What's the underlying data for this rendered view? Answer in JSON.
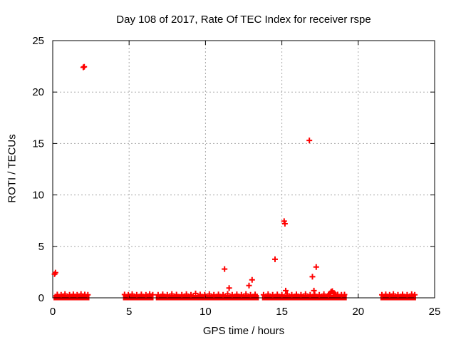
{
  "chart_data": {
    "type": "scatter",
    "title": "Day 108 of 2017, Rate Of TEC Index for receiver rspe",
    "xlabel": "GPS time / hours",
    "ylabel": "ROTI / TECUs",
    "xlim": [
      0,
      25
    ],
    "ylim": [
      0,
      25
    ],
    "xticks": [
      0,
      5,
      10,
      15,
      20,
      25
    ],
    "yticks": [
      0,
      5,
      10,
      15,
      20,
      25
    ],
    "grid": true,
    "legend": "none",
    "marker": "plus",
    "marker_color": "#ff0000",
    "border_color": "#000000",
    "grid_color": "#a8a8a8",
    "background": "#ffffff",
    "series": [
      {
        "name": "ROTI",
        "points": [
          [
            0.12,
            2.3
          ],
          [
            0.18,
            2.45
          ],
          [
            2.0,
            22.4
          ],
          [
            2.06,
            22.45
          ],
          [
            11.25,
            2.8
          ],
          [
            11.55,
            0.95
          ],
          [
            12.85,
            1.2
          ],
          [
            13.05,
            1.75
          ],
          [
            14.55,
            3.75
          ],
          [
            15.15,
            7.45
          ],
          [
            15.2,
            7.2
          ],
          [
            15.25,
            0.7
          ],
          [
            16.8,
            15.3
          ],
          [
            17.0,
            2.05
          ],
          [
            17.1,
            0.7
          ],
          [
            17.25,
            3.0
          ],
          [
            18.15,
            0.4
          ],
          [
            18.22,
            0.58
          ],
          [
            18.3,
            0.65
          ],
          [
            18.4,
            0.48
          ],
          [
            18.5,
            0.35
          ]
        ]
      }
    ],
    "baseline_band": {
      "description": "dense overlapping points near ROTI 0",
      "y_top": 0.28,
      "y_bottom": -0.24,
      "segments": [
        [
          0.05,
          2.4
        ],
        [
          4.6,
          6.6
        ],
        [
          6.75,
          13.5
        ],
        [
          13.7,
          19.25
        ],
        [
          21.45,
          23.78
        ]
      ]
    },
    "band_top_points": [
      [
        0.3,
        0.32
      ],
      [
        0.55,
        0.3
      ],
      [
        0.8,
        0.36
      ],
      [
        1.1,
        0.3
      ],
      [
        1.35,
        0.34
      ],
      [
        1.6,
        0.3
      ],
      [
        1.85,
        0.37
      ],
      [
        2.1,
        0.32
      ],
      [
        2.3,
        0.3
      ],
      [
        4.7,
        0.32
      ],
      [
        4.95,
        0.3
      ],
      [
        5.2,
        0.35
      ],
      [
        5.5,
        0.3
      ],
      [
        5.8,
        0.33
      ],
      [
        6.1,
        0.3
      ],
      [
        6.35,
        0.36
      ],
      [
        6.55,
        0.3
      ],
      [
        6.9,
        0.3
      ],
      [
        7.2,
        0.34
      ],
      [
        7.5,
        0.3
      ],
      [
        7.8,
        0.37
      ],
      [
        8.1,
        0.31
      ],
      [
        8.45,
        0.3
      ],
      [
        8.75,
        0.35
      ],
      [
        9.05,
        0.3
      ],
      [
        9.35,
        0.42
      ],
      [
        9.65,
        0.32
      ],
      [
        9.95,
        0.3
      ],
      [
        10.25,
        0.36
      ],
      [
        10.55,
        0.3
      ],
      [
        10.85,
        0.33
      ],
      [
        11.15,
        0.3
      ],
      [
        11.45,
        0.38
      ],
      [
        11.75,
        0.3
      ],
      [
        12.05,
        0.34
      ],
      [
        12.35,
        0.3
      ],
      [
        12.65,
        0.36
      ],
      [
        12.95,
        0.3
      ],
      [
        13.25,
        0.33
      ],
      [
        13.8,
        0.3
      ],
      [
        14.1,
        0.35
      ],
      [
        14.4,
        0.3
      ],
      [
        14.7,
        0.33
      ],
      [
        15.0,
        0.3
      ],
      [
        15.35,
        0.37
      ],
      [
        15.65,
        0.3
      ],
      [
        15.95,
        0.34
      ],
      [
        16.25,
        0.3
      ],
      [
        16.55,
        0.36
      ],
      [
        16.85,
        0.3
      ],
      [
        17.15,
        0.33
      ],
      [
        17.45,
        0.3
      ],
      [
        17.75,
        0.35
      ],
      [
        18.05,
        0.3
      ],
      [
        18.65,
        0.32
      ],
      [
        18.9,
        0.3
      ],
      [
        19.1,
        0.31
      ],
      [
        21.55,
        0.3
      ],
      [
        21.8,
        0.34
      ],
      [
        22.05,
        0.3
      ],
      [
        22.3,
        0.36
      ],
      [
        22.6,
        0.3
      ],
      [
        22.9,
        0.33
      ],
      [
        23.2,
        0.3
      ],
      [
        23.5,
        0.35
      ],
      [
        23.7,
        0.3
      ]
    ]
  }
}
